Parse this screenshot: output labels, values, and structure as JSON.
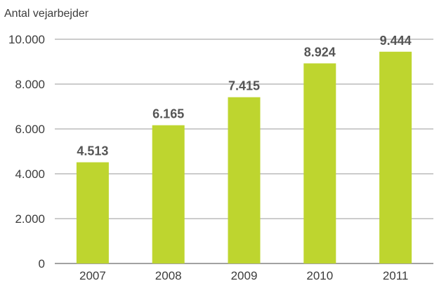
{
  "chart_data": {
    "type": "bar",
    "ylabel": "Antal vejarbejder",
    "categories": [
      "2007",
      "2008",
      "2009",
      "2010",
      "2011"
    ],
    "values": [
      4513,
      6165,
      7415,
      8924,
      9444
    ],
    "data_labels": [
      "4.513",
      "6.165",
      "7.415",
      "8.924",
      "9.444"
    ],
    "y_ticks": [
      0,
      2000,
      4000,
      6000,
      8000,
      10000
    ],
    "y_tick_labels": [
      "0",
      "2.000",
      "4.000",
      "6.000",
      "8.000",
      "10.000"
    ],
    "ylim": [
      0,
      10000
    ],
    "grid": true,
    "legend": "none",
    "bar_color": "#bed52f",
    "grid_color": "#9a9a9a"
  }
}
